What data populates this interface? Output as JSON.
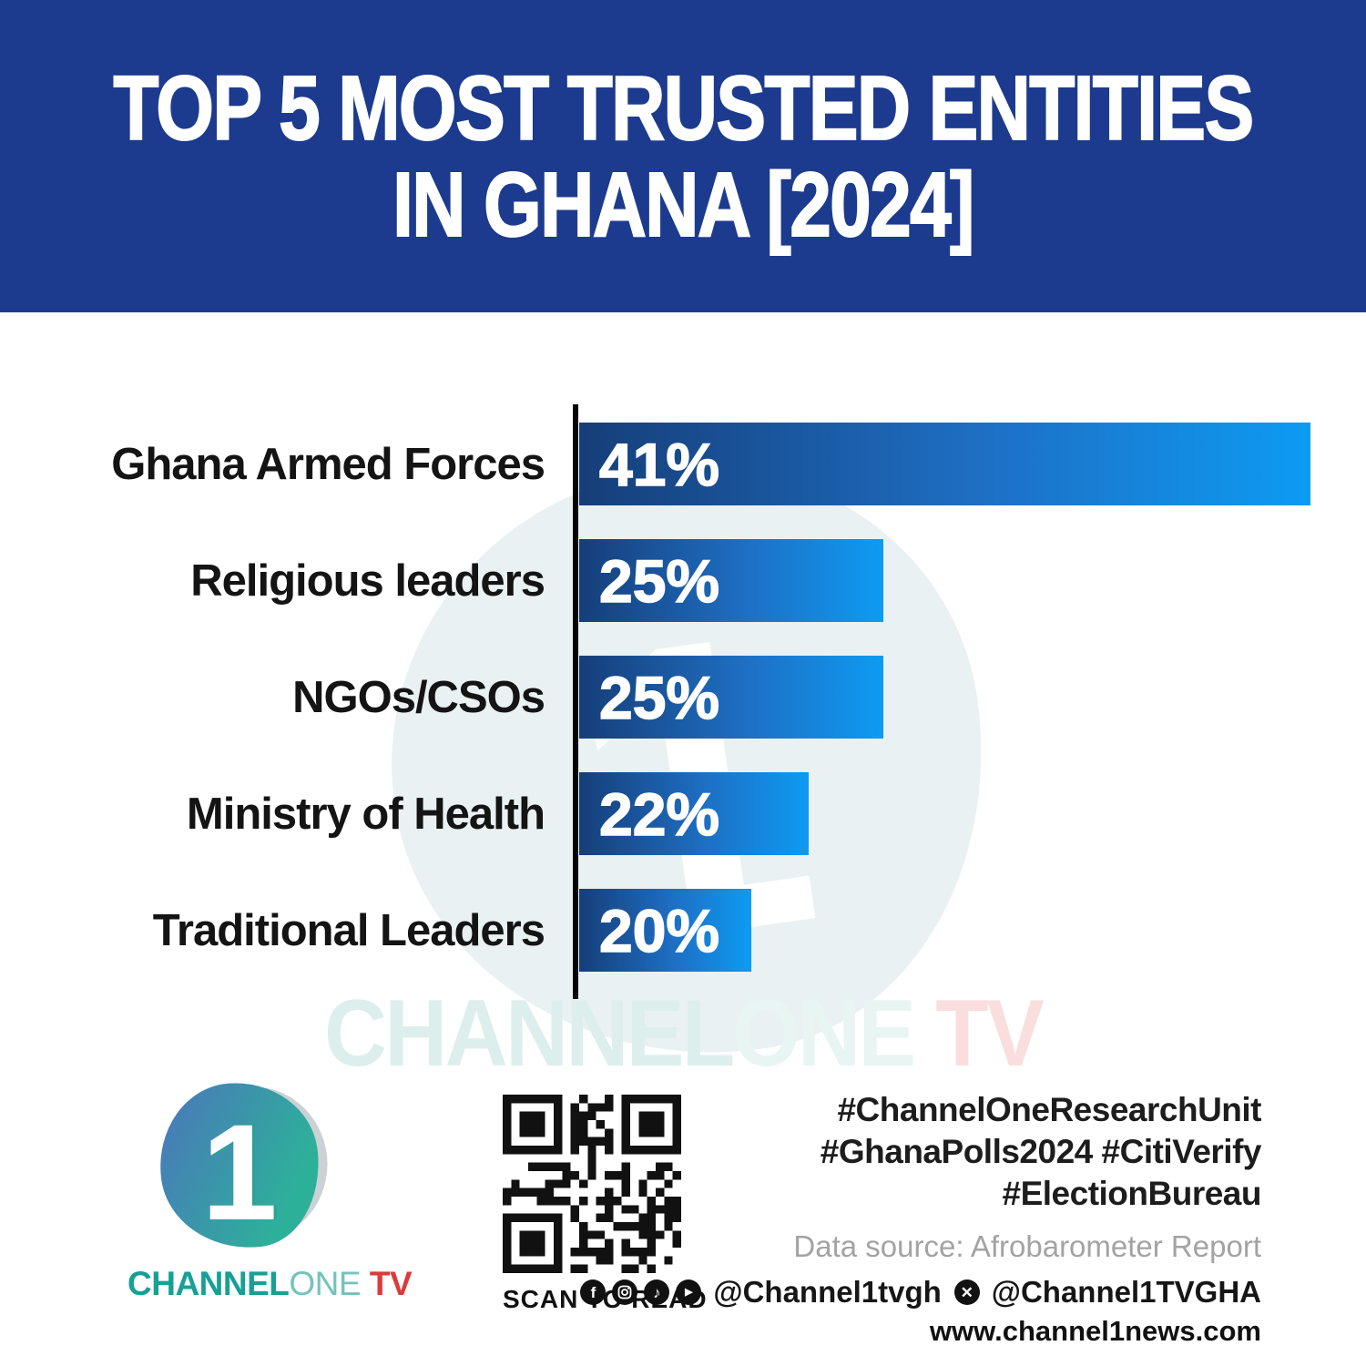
{
  "header": {
    "title_line1": "TOP 5 MOST TRUSTED ENTITIES",
    "title_line2": "IN GHANA [2024]",
    "bg_color": "#1c3b8e"
  },
  "chart_data": {
    "type": "bar",
    "orientation": "horizontal",
    "title": "TOP 5 MOST TRUSTED ENTITIES IN GHANA [2024]",
    "categories": [
      "Ghana Armed Forces",
      "Religious leaders",
      "NGOs/CSOs",
      "Ministry of Health",
      "Traditional Leaders"
    ],
    "values": [
      41,
      25,
      25,
      22,
      20
    ],
    "value_labels": [
      "41%",
      "25%",
      "25%",
      "22%",
      "20%"
    ],
    "value_label_position": "inside-left",
    "bar_widths_pct": [
      100,
      41.6,
      41.6,
      31.4,
      23.5
    ],
    "bar_gradient": [
      "#163e79",
      "#1e6fc4",
      "#0d9bf2"
    ],
    "axis_color": "#050505",
    "grid": false,
    "legend": false
  },
  "watermark": {
    "channel": "CHANNEL",
    "one": "ONE",
    "tv": " TV",
    "channel_color": "#ddefec",
    "one_color": "#e9f5f2",
    "tv_color": "#fadede"
  },
  "brand": {
    "numeral": "1",
    "channel": "CHANNEL",
    "one": "ONE",
    "tv": " TV"
  },
  "qr": {
    "caption": "SCAN TO READ"
  },
  "footer_right": {
    "hashtags": [
      "#ChannelOneResearchUnit",
      "#GhanaPolls2024 #CitiVerify",
      "#ElectionBureau"
    ],
    "data_source": "Data source: Afrobarometer Report",
    "handle_main": "@Channel1tvgh",
    "handle_x": "@Channel1TVGHA",
    "website": "www.channel1news.com",
    "icons": [
      "facebook-icon",
      "instagram-icon",
      "tiktok-icon",
      "youtube-icon",
      "x-icon"
    ]
  }
}
